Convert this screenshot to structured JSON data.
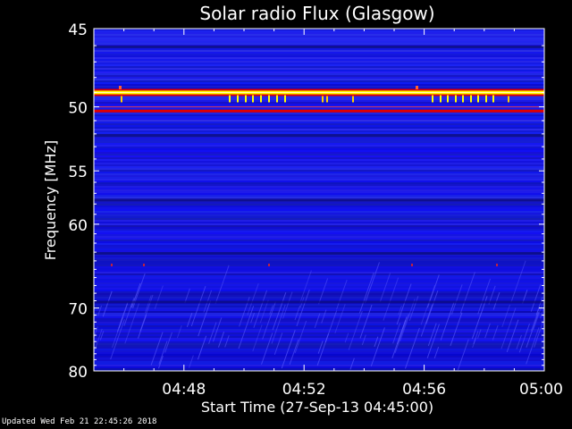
{
  "chart_data": {
    "type": "heatmap",
    "title": "Solar radio Flux (Glasgow)",
    "xlabel": "Start Time (27-Sep-13 04:45:00)",
    "ylabel": "Frequency [MHz]",
    "x_ticks": [
      "04:48",
      "04:52",
      "04:56",
      "05:00"
    ],
    "y_ticks": [
      "45",
      "50",
      "55",
      "60",
      "70",
      "80"
    ],
    "x_range": [
      "04:45:00",
      "05:00:00"
    ],
    "y_range": [
      45,
      80
    ],
    "y_scale": "reciprocal",
    "colormap": "blue-red-yellow",
    "strong_bands_mhz": [
      49,
      50.3
    ],
    "grid": false,
    "legend": "none"
  },
  "footer": {
    "updated": "Updated Wed Feb 21 22:45:26 2018"
  },
  "colors": {
    "background": "#000000",
    "low": "#1a1ad8",
    "mid": "#e00000",
    "high": "#ffff00"
  }
}
